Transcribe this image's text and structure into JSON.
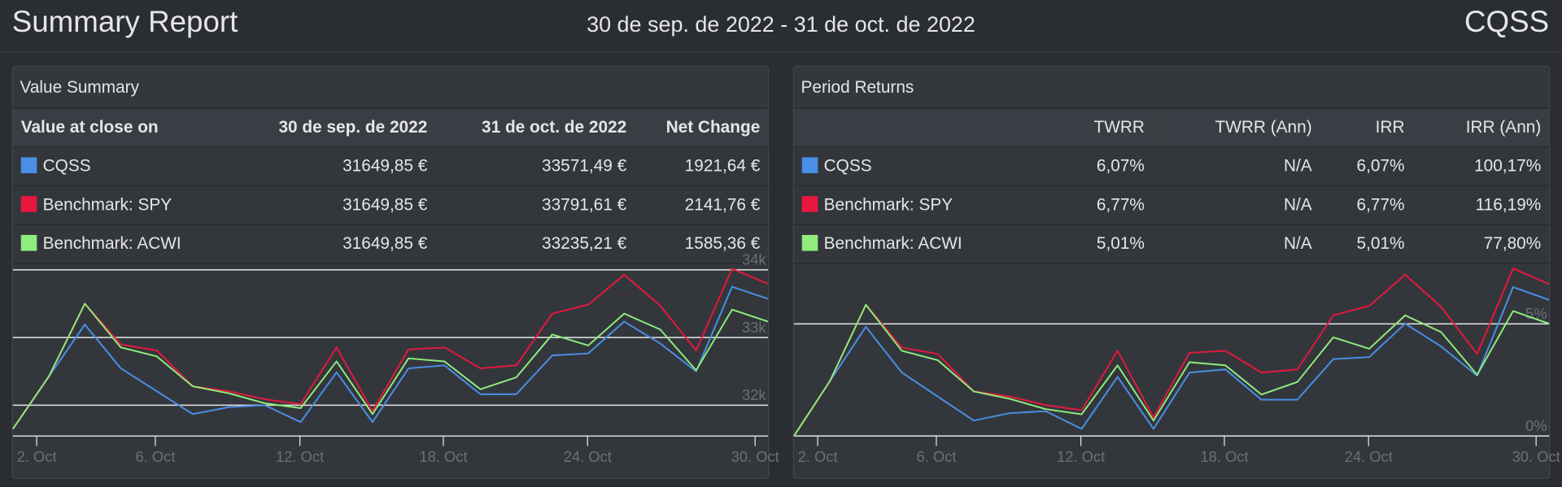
{
  "header": {
    "title": "Summary Report",
    "date_range": "30 de sep. de 2022 - 31 de oct. de 2022",
    "account": "CQSS"
  },
  "value_summary": {
    "title": "Value Summary",
    "columns": [
      "Value at close on",
      "30 de sep. de 2022",
      "31 de oct. de 2022",
      "Net Change"
    ],
    "rows": [
      [
        "31649,85 €",
        "33571,49 €",
        "1921,64 €"
      ],
      [
        "31649,85 €",
        "33791,61 €",
        "2141,76 €"
      ],
      [
        "31649,85 €",
        "33235,21 €",
        "1585,36 €"
      ]
    ]
  },
  "period_returns": {
    "title": "Period Returns",
    "columns": [
      "TWRR",
      "TWRR (Ann)",
      "IRR",
      "IRR (Ann)"
    ],
    "rows": [
      [
        "6,07%",
        "N/A",
        "6,07%",
        "100,17%"
      ],
      [
        "6,77%",
        "N/A",
        "6,77%",
        "116,19%"
      ],
      [
        "5,01%",
        "N/A",
        "5,01%",
        "77,80%"
      ]
    ]
  },
  "chart_data": [
    {
      "type": "line",
      "xlim": [
        0,
        21
      ],
      "xticks": [
        {
          "value": 0.66,
          "label": "2. Oct"
        },
        {
          "value": 3.96,
          "label": "6. Oct"
        },
        {
          "value": 7.98,
          "label": "12. Oct"
        },
        {
          "value": 11.97,
          "label": "18. Oct"
        },
        {
          "value": 15.98,
          "label": "24. Oct"
        },
        {
          "value": 20.64,
          "label": "30. Oct"
        }
      ],
      "ylim": [
        31544,
        34103
      ],
      "yticks": [
        {
          "value": 32000,
          "label": "32k"
        },
        {
          "value": 33000,
          "label": "33k"
        },
        {
          "value": 34000,
          "label": "34k"
        }
      ],
      "grid": true,
      "series": [
        {
          "name": "CQSS",
          "color": "#4a8fe7",
          "values": [
            31650,
            32426,
            33191,
            32544,
            32206,
            31868,
            31971,
            32000,
            31750,
            32485,
            31750,
            32544,
            32588,
            32162,
            32162,
            32735,
            32765,
            33235,
            32912,
            32500,
            33750,
            33571
          ]
        },
        {
          "name": "Benchmark: SPY",
          "color": "#e8173d",
          "values": [
            31650,
            32426,
            33500,
            32897,
            32809,
            32279,
            32206,
            32088,
            32015,
            32853,
            31912,
            32824,
            32853,
            32544,
            32588,
            33353,
            33485,
            33926,
            33471,
            32809,
            34015,
            33792
          ]
        },
        {
          "name": "Benchmark: ACWI",
          "color": "#90ec7d",
          "values": [
            31650,
            32426,
            33500,
            32853,
            32721,
            32279,
            32176,
            32029,
            31956,
            32647,
            31868,
            32691,
            32647,
            32235,
            32412,
            33044,
            32882,
            33353,
            33118,
            32515,
            33412,
            33235
          ]
        }
      ]
    },
    {
      "type": "line",
      "xlim": [
        0,
        21
      ],
      "xticks": [
        {
          "value": 0.66,
          "label": "2. Oct"
        },
        {
          "value": 3.96,
          "label": "6. Oct"
        },
        {
          "value": 7.98,
          "label": "12. Oct"
        },
        {
          "value": 11.97,
          "label": "18. Oct"
        },
        {
          "value": 15.98,
          "label": "24. Oct"
        },
        {
          "value": 20.64,
          "label": "30. Oct"
        }
      ],
      "ylim": [
        0,
        7.72
      ],
      "yticks": [
        {
          "value": 0,
          "label": "0%"
        },
        {
          "value": 5,
          "label": "5%"
        }
      ],
      "grid": true,
      "series": [
        {
          "color": "#4a8fe7",
          "values": [
            0,
            2.45,
            4.87,
            2.83,
            1.76,
            0.69,
            1.02,
            1.11,
            0.32,
            2.64,
            0.32,
            2.83,
            2.97,
            1.62,
            1.62,
            3.43,
            3.52,
            5.01,
            3.99,
            2.69,
            6.64,
            6.07
          ]
        },
        {
          "color": "#e8173d",
          "values": [
            0,
            2.45,
            5.85,
            3.94,
            3.66,
            1.99,
            1.76,
            1.38,
            1.15,
            3.8,
            0.83,
            3.71,
            3.8,
            2.83,
            2.97,
            5.38,
            5.8,
            7.19,
            5.75,
            3.66,
            7.47,
            6.77
          ]
        },
        {
          "color": "#90ec7d",
          "values": [
            0,
            2.45,
            5.85,
            3.8,
            3.38,
            1.99,
            1.66,
            1.2,
            0.97,
            3.15,
            0.69,
            3.29,
            3.15,
            1.85,
            2.41,
            4.4,
            3.89,
            5.38,
            4.63,
            2.73,
            5.57,
            5.01
          ]
        }
      ]
    }
  ]
}
